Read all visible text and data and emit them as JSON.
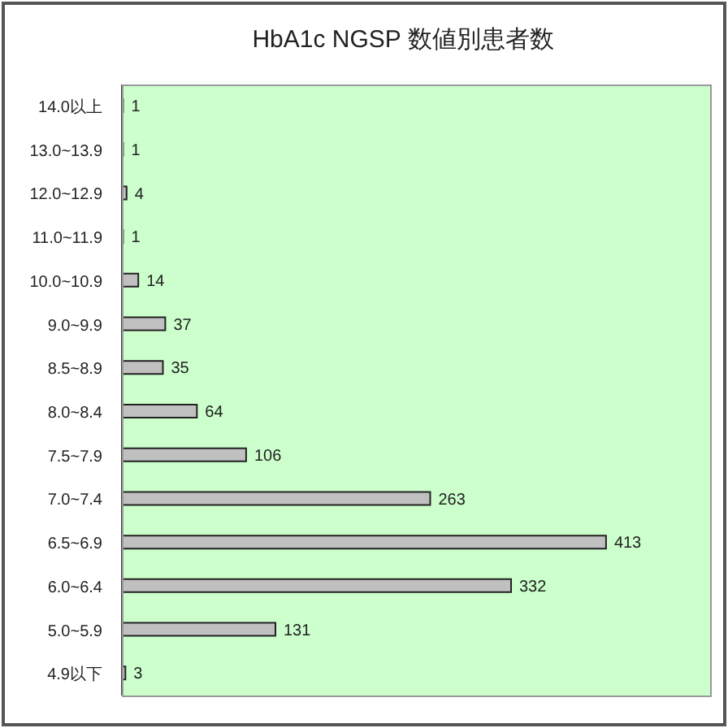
{
  "chart_data": {
    "type": "bar",
    "title": "HbA1c NGSP 数値別患者数",
    "orientation": "horizontal",
    "categories": [
      "14.0以上",
      "13.0~13.9",
      "12.0~12.9",
      "11.0~11.9",
      "10.0~10.9",
      "9.0~9.9",
      "8.5~8.9",
      "8.0~8.4",
      "7.5~7.9",
      "7.0~7.4",
      "6.5~6.9",
      "6.0~6.4",
      "5.0~5.9",
      "4.9以下"
    ],
    "values": [
      1,
      1,
      4,
      1,
      14,
      37,
      35,
      64,
      106,
      263,
      413,
      332,
      131,
      3
    ],
    "color": "#c0c0c0",
    "data_labels": true,
    "tick_labels": "y"
  }
}
